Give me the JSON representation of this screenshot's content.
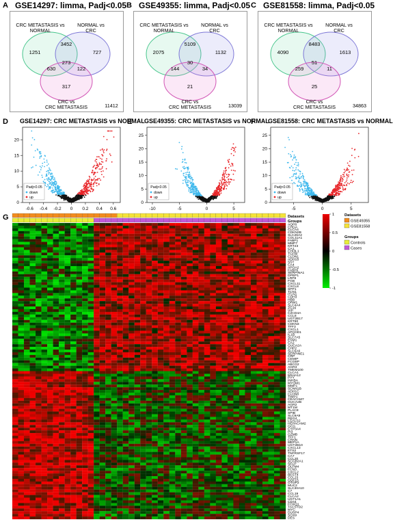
{
  "venn": [
    {
      "letter": "A",
      "title": "GSE14297: limma, Padj<0.05",
      "set_labels": [
        "CRC METASTASIS vs NORMAL",
        "NORMAL vs CRC",
        "CRC vs CRC METASTASIS"
      ],
      "regions": {
        "a_only": "1251",
        "ab": "3452",
        "b_only": "727",
        "ac": "630",
        "abc": "273",
        "bc": "122",
        "c_only": "317"
      },
      "outside": "11412"
    },
    {
      "letter": "B",
      "title": "GSE49355: limma, Padj<0.05",
      "set_labels": [
        "CRC METASTASIS vs NORMAL",
        "NORMAL vs CRC",
        "CRC vs CRC METASTASIS"
      ],
      "regions": {
        "a_only": "2075",
        "ab": "5109",
        "b_only": "1132",
        "ac": "144",
        "abc": "30",
        "bc": "34",
        "c_only": "21"
      },
      "outside": "13039"
    },
    {
      "letter": "C",
      "title": "GSE81558: limma, Padj<0.05",
      "set_labels": [
        "CRC METASTASIS vs NORMAL",
        "NORMAL vs CRC",
        "CRC vs CRC METASTASIS"
      ],
      "regions": {
        "a_only": "4090",
        "ab": "8483",
        "b_only": "1613",
        "ac": "259",
        "abc": "51",
        "bc": "11",
        "c_only": "25"
      },
      "outside": "34863"
    }
  ],
  "volcano": [
    {
      "letter": "D",
      "title": "GSE14297: CRC METASTASIS vs NORMAL",
      "x_ticks": [
        "-0.6",
        "-0.4",
        "-0.2",
        "0",
        "0.2",
        "0.4",
        "0.6"
      ],
      "x_range": [
        -0.7,
        0.7
      ],
      "y_ticks": [
        "0",
        "5",
        "10",
        "15",
        "20"
      ],
      "y_range": [
        0,
        24
      ],
      "legend_title": "Padj<0.05",
      "legend": [
        "down",
        "up"
      ]
    },
    {
      "letter": "E",
      "title": "GSE49355: CRC METASTASIS vs NORMAL",
      "x_ticks": [
        "-10",
        "-5",
        "0",
        "5"
      ],
      "x_range": [
        -11,
        7
      ],
      "y_ticks": [
        "0",
        "5",
        "10",
        "15",
        "20",
        "25"
      ],
      "y_range": [
        0,
        28
      ],
      "legend_title": "Padj<0.05",
      "legend": [
        "down",
        "up"
      ]
    },
    {
      "letter": "F",
      "title": "GSE81558: CRC METASTASIS vs NORMAL",
      "x_ticks": [
        "-5",
        "0",
        "5"
      ],
      "x_range": [
        -9,
        8
      ],
      "y_ticks": [
        "0",
        "5",
        "10",
        "15",
        "20",
        "25"
      ],
      "y_range": [
        0,
        28
      ],
      "legend_title": "Padj<0.05",
      "legend": [
        "down",
        "up"
      ]
    }
  ],
  "heatmap": {
    "letter": "G",
    "track_labels": [
      "Datasets",
      "Groups"
    ],
    "colorbar_ticks": [
      "1",
      "0.5",
      "0",
      "-0.5",
      "-1"
    ],
    "legend_datasets_title": "Datasets",
    "legend_datasets": [
      "GSE49355",
      "GSE81558"
    ],
    "legend_groups_title": "Groups",
    "legend_groups": [
      "Controls",
      "Cases"
    ],
    "genes": [
      "AQP8",
      "CHGA",
      "CLCA4",
      "CDKN2B",
      "SLC26A2",
      "COL11A1",
      "FABP1",
      "MMP7",
      "KRT23",
      "CA1",
      "CHI3L1",
      "TGFBI",
      "CLDN1",
      "ADH1B",
      "SST",
      "CA4",
      "APOA2",
      "FABP6",
      "SERPINA1",
      "DPEP1",
      "LRP8",
      "FGB",
      "CXCL11",
      "CXCL8",
      "SPP1",
      "TCN1",
      "ITLN1",
      "CDH3",
      "HBB",
      "ORM1",
      "SLC4A4",
      "ZG16",
      "VIP",
      "C2CD4A",
      "CCL8",
      "UGT2B17",
      "KRT80",
      "CDKN3",
      "TFF3",
      "CXCL1",
      "APCDD1",
      "IL1B",
      "SLC7A5",
      "ESM1",
      "CA2",
      "GUCA2A",
      "CHP2",
      "SLC6A6",
      "SERPINE1",
      "CRP",
      "CEMIP",
      "FCGBP",
      "ABCG2",
      "AGR3",
      "TMEM100",
      "CLCA1",
      "MS4A12",
      "PYY",
      "INHBA",
      "MYOM1",
      "MMP1",
      "SCNN1B",
      "ADH1C",
      "CLDN8",
      "TIMP1",
      "CEACAM7",
      "GUCA2B",
      "AGR2",
      "MT1M",
      "PLAC8",
      "SPIB",
      "SLC9A9",
      "REG4",
      "LGALS2",
      "HEPACAM2",
      "GCG",
      "CYP3A4",
      "PI3",
      "GZMB",
      "TFF1",
      "CRNN",
      "MEP1A",
      "UGT2B10",
      "CXCL13",
      "ETS2",
      "TNFRSF17",
      "CA7",
      "CCL20",
      "SCGB2A1",
      "SELP",
      "OLFM4",
      "FCN3",
      "CXCL2",
      "BEST4",
      "CCL23",
      "GDF15",
      "OTOP2",
      "MUC2",
      "SLC30A10",
      "C7",
      "CCL19",
      "CLCA2",
      "UGT1A1",
      "CD44",
      "FOXQ1",
      "TACSTD2",
      "MYC",
      "DUSP4",
      "SOX9",
      "DES"
    ],
    "cluster_split_gene_index": 55,
    "n_columns": 47,
    "n_controls": 14
  }
}
